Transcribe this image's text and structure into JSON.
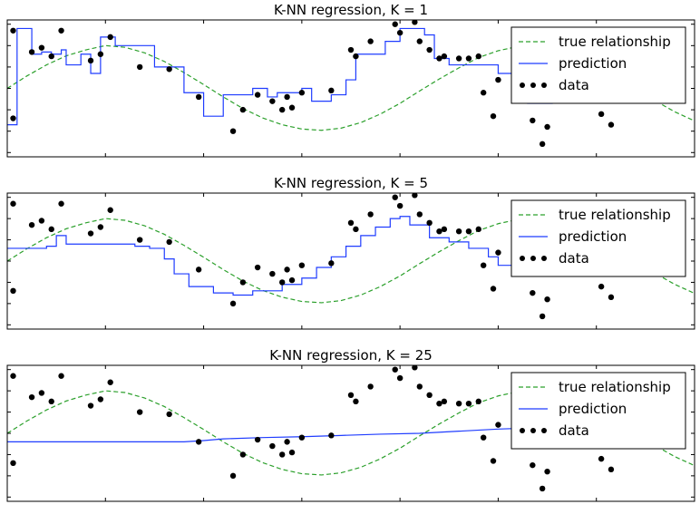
{
  "chart_data": [
    {
      "type": "line",
      "title": "K-NN regression, K = 1",
      "xlabel": "",
      "ylabel": "",
      "xlim": [
        0,
        7.0
      ],
      "ylim": [
        -1.6,
        1.6
      ],
      "grid": false,
      "legend": {
        "position": "top-right",
        "entries": [
          "true relationship",
          "prediction",
          "data"
        ]
      },
      "colors": {
        "true": "#2ca02c",
        "prediction": "#1f3cff",
        "data": "#000000"
      },
      "series": [
        {
          "name": "true relationship",
          "x": [
            0.0,
            0.2,
            0.4,
            0.6,
            0.8,
            1.0,
            1.2,
            1.4,
            1.6,
            1.8,
            2.0,
            2.2,
            2.4,
            2.6,
            2.8,
            3.0,
            3.2,
            3.4,
            3.6,
            3.8,
            4.0,
            4.2,
            4.4,
            4.6,
            4.8,
            5.0,
            5.2,
            5.4,
            5.6,
            5.8,
            6.0,
            6.2,
            6.4,
            6.6,
            6.8,
            7.0
          ],
          "y": [
            0.0,
            0.29,
            0.55,
            0.76,
            0.9,
            1.0,
            0.96,
            0.83,
            0.63,
            0.37,
            0.09,
            -0.2,
            -0.47,
            -0.69,
            -0.85,
            -0.95,
            -0.98,
            -0.93,
            -0.8,
            -0.6,
            -0.35,
            -0.06,
            0.22,
            0.48,
            0.72,
            0.88,
            0.98,
            0.99,
            0.92,
            0.76,
            0.54,
            0.28,
            -0.01,
            -0.29,
            -0.55,
            -0.76
          ]
        },
        {
          "name": "prediction",
          "x": [
            0.0,
            0.1,
            0.1,
            0.25,
            0.25,
            0.35,
            0.35,
            0.45,
            0.45,
            0.55,
            0.55,
            0.6,
            0.6,
            0.75,
            0.75,
            0.85,
            0.85,
            0.95,
            0.95,
            1.1,
            1.1,
            1.5,
            1.5,
            1.8,
            1.8,
            2.0,
            2.0,
            2.2,
            2.2,
            2.5,
            2.5,
            2.65,
            2.65,
            2.75,
            2.75,
            3.0,
            3.0,
            3.1,
            3.1,
            3.3,
            3.3,
            3.45,
            3.45,
            3.55,
            3.55,
            3.85,
            3.85,
            3.9,
            3.95,
            4.0,
            4.0,
            4.25,
            4.25,
            4.35,
            4.35,
            4.5,
            4.5,
            4.7,
            4.7,
            5.0,
            5.0,
            5.3,
            5.3,
            5.55,
            5.55,
            6.2,
            6.2
          ],
          "y": [
            -0.85,
            -0.85,
            1.4,
            1.4,
            0.8,
            0.8,
            0.85,
            0.85,
            0.8,
            0.8,
            0.9,
            0.9,
            0.55,
            0.55,
            0.8,
            0.8,
            0.35,
            0.35,
            1.2,
            1.2,
            1.0,
            1.0,
            0.5,
            0.5,
            -0.1,
            -0.1,
            -0.65,
            -0.65,
            -0.15,
            -0.15,
            0.0,
            0.0,
            -0.2,
            -0.2,
            -0.1,
            -0.1,
            0.0,
            0.0,
            -0.3,
            -0.3,
            -0.15,
            -0.15,
            0.2,
            0.2,
            0.8,
            0.8,
            1.1,
            1.1,
            1.1,
            1.1,
            1.4,
            1.4,
            1.25,
            1.25,
            0.7,
            0.7,
            0.55,
            0.55,
            0.55,
            0.55,
            0.35,
            0.35,
            -0.35,
            -0.35,
            0.2,
            0.2,
            -0.2
          ]
        },
        {
          "name": "data",
          "x": [
            0.06,
            0.06,
            0.25,
            0.35,
            0.45,
            0.55,
            0.85,
            0.95,
            1.05,
            1.35,
            1.65,
            1.95,
            2.3,
            2.4,
            2.55,
            2.7,
            2.8,
            2.85,
            2.9,
            3.0,
            3.3,
            3.5,
            3.55,
            3.7,
            3.95,
            4.0,
            4.15,
            4.2,
            4.3,
            4.4,
            4.45,
            4.6,
            4.7,
            4.8,
            4.85,
            4.95,
            5.0,
            5.35,
            5.45,
            5.5,
            5.6,
            5.7,
            5.75,
            6.05,
            6.15,
            6.25,
            6.4,
            6.5
          ],
          "y": [
            -0.7,
            1.35,
            0.85,
            0.95,
            0.75,
            1.35,
            0.65,
            0.8,
            1.2,
            0.5,
            0.45,
            -0.2,
            -1.0,
            -0.5,
            -0.15,
            -0.3,
            -0.5,
            -0.2,
            -0.45,
            -0.1,
            -0.05,
            0.9,
            0.75,
            1.1,
            1.5,
            1.3,
            1.55,
            1.1,
            0.9,
            0.7,
            0.75,
            0.7,
            0.7,
            0.75,
            -0.1,
            -0.65,
            0.2,
            -0.75,
            -1.3,
            -0.9,
            0.5,
            0.55,
            0.1,
            -0.6,
            -0.85,
            -0.2,
            -0.25,
            0.2
          ]
        }
      ]
    },
    {
      "type": "line",
      "title": "K-NN regression, K = 5",
      "xlabel": "",
      "ylabel": "",
      "xlim": [
        0,
        7.0
      ],
      "ylim": [
        -1.6,
        1.6
      ],
      "grid": false,
      "legend": {
        "position": "top-right",
        "entries": [
          "true relationship",
          "prediction",
          "data"
        ]
      },
      "colors": {
        "true": "#2ca02c",
        "prediction": "#1f3cff",
        "data": "#000000"
      },
      "series": [
        {
          "name": "true relationship",
          "x": [
            0.0,
            0.2,
            0.4,
            0.6,
            0.8,
            1.0,
            1.2,
            1.4,
            1.6,
            1.8,
            2.0,
            2.2,
            2.4,
            2.6,
            2.8,
            3.0,
            3.2,
            3.4,
            3.6,
            3.8,
            4.0,
            4.2,
            4.4,
            4.6,
            4.8,
            5.0,
            5.2,
            5.4,
            5.6,
            5.8,
            6.0,
            6.2,
            6.4,
            6.6,
            6.8,
            7.0
          ],
          "y": [
            0.0,
            0.29,
            0.55,
            0.76,
            0.9,
            1.0,
            0.96,
            0.83,
            0.63,
            0.37,
            0.09,
            -0.2,
            -0.47,
            -0.69,
            -0.85,
            -0.95,
            -0.98,
            -0.93,
            -0.8,
            -0.6,
            -0.35,
            -0.06,
            0.22,
            0.48,
            0.72,
            0.88,
            0.98,
            0.99,
            0.92,
            0.76,
            0.54,
            0.28,
            -0.01,
            -0.29,
            -0.55,
            -0.76
          ]
        },
        {
          "name": "prediction",
          "x": [
            0.0,
            0.4,
            0.4,
            0.5,
            0.5,
            0.6,
            0.6,
            1.3,
            1.3,
            1.45,
            1.45,
            1.6,
            1.6,
            1.7,
            1.7,
            1.85,
            1.85,
            2.1,
            2.1,
            2.3,
            2.3,
            2.5,
            2.5,
            2.8,
            2.8,
            3.0,
            3.0,
            3.15,
            3.15,
            3.3,
            3.3,
            3.45,
            3.45,
            3.6,
            3.6,
            3.75,
            3.75,
            3.9,
            3.9,
            4.0,
            4.0,
            4.1,
            4.1,
            4.3,
            4.3,
            4.5,
            4.5,
            4.7,
            4.7,
            4.9,
            4.9,
            5.0,
            5.0,
            5.3,
            5.3,
            5.6,
            5.6,
            6.0,
            6.0
          ],
          "y": [
            0.3,
            0.3,
            0.35,
            0.35,
            0.6,
            0.6,
            0.4,
            0.4,
            0.35,
            0.35,
            0.3,
            0.3,
            0.05,
            0.05,
            -0.3,
            -0.3,
            -0.6,
            -0.6,
            -0.75,
            -0.75,
            -0.8,
            -0.8,
            -0.7,
            -0.7,
            -0.55,
            -0.55,
            -0.4,
            -0.4,
            -0.15,
            -0.15,
            0.1,
            0.1,
            0.35,
            0.35,
            0.6,
            0.6,
            0.8,
            0.8,
            1.0,
            1.0,
            1.05,
            1.05,
            0.85,
            0.85,
            0.55,
            0.55,
            0.45,
            0.45,
            0.3,
            0.3,
            0.1,
            0.1,
            -0.1,
            -0.1,
            -0.2,
            -0.2,
            -0.15,
            -0.15,
            -0.2
          ]
        },
        {
          "name": "data",
          "x": [
            0.06,
            0.06,
            0.25,
            0.35,
            0.45,
            0.55,
            0.85,
            0.95,
            1.05,
            1.35,
            1.65,
            1.95,
            2.3,
            2.4,
            2.55,
            2.7,
            2.8,
            2.85,
            2.9,
            3.0,
            3.3,
            3.5,
            3.55,
            3.7,
            3.95,
            4.0,
            4.15,
            4.2,
            4.3,
            4.4,
            4.45,
            4.6,
            4.7,
            4.8,
            4.85,
            4.95,
            5.0,
            5.35,
            5.45,
            5.5,
            5.6,
            5.7,
            5.75,
            6.05,
            6.15,
            6.25,
            6.4,
            6.5
          ],
          "y": [
            -0.7,
            1.35,
            0.85,
            0.95,
            0.75,
            1.35,
            0.65,
            0.8,
            1.2,
            0.5,
            0.45,
            -0.2,
            -1.0,
            -0.5,
            -0.15,
            -0.3,
            -0.5,
            -0.2,
            -0.45,
            -0.1,
            -0.05,
            0.9,
            0.75,
            1.1,
            1.5,
            1.3,
            1.55,
            1.1,
            0.9,
            0.7,
            0.75,
            0.7,
            0.7,
            0.75,
            -0.1,
            -0.65,
            0.2,
            -0.75,
            -1.3,
            -0.9,
            0.5,
            0.55,
            0.1,
            -0.6,
            -0.85,
            -0.2,
            -0.25,
            0.2
          ]
        }
      ]
    },
    {
      "type": "line",
      "title": "K-NN regression, K = 25",
      "xlabel": "",
      "ylabel": "",
      "xlim": [
        0,
        7.0
      ],
      "ylim": [
        -1.6,
        1.6
      ],
      "grid": false,
      "legend": {
        "position": "top-right",
        "entries": [
          "true relationship",
          "prediction",
          "data"
        ]
      },
      "colors": {
        "true": "#2ca02c",
        "prediction": "#1f3cff",
        "data": "#000000"
      },
      "series": [
        {
          "name": "true relationship",
          "x": [
            0.0,
            0.2,
            0.4,
            0.6,
            0.8,
            1.0,
            1.2,
            1.4,
            1.6,
            1.8,
            2.0,
            2.2,
            2.4,
            2.6,
            2.8,
            3.0,
            3.2,
            3.4,
            3.6,
            3.8,
            4.0,
            4.2,
            4.4,
            4.6,
            4.8,
            5.0,
            5.2,
            5.4,
            5.6,
            5.8,
            6.0,
            6.2,
            6.4,
            6.6,
            6.8,
            7.0
          ],
          "y": [
            0.0,
            0.29,
            0.55,
            0.76,
            0.9,
            1.0,
            0.96,
            0.83,
            0.63,
            0.37,
            0.09,
            -0.2,
            -0.47,
            -0.69,
            -0.85,
            -0.95,
            -0.98,
            -0.93,
            -0.8,
            -0.6,
            -0.35,
            -0.06,
            0.22,
            0.48,
            0.72,
            0.88,
            0.98,
            0.99,
            0.92,
            0.76,
            0.54,
            0.28,
            -0.01,
            -0.29,
            -0.55,
            -0.76
          ]
        },
        {
          "name": "prediction",
          "x": [
            0.0,
            1.8,
            2.0,
            2.2,
            2.6,
            3.0,
            3.4,
            3.8,
            4.2,
            4.6,
            5.0,
            5.4,
            6.0
          ],
          "y": [
            -0.2,
            -0.2,
            -0.17,
            -0.13,
            -0.1,
            -0.08,
            -0.05,
            -0.02,
            0.0,
            0.05,
            0.1,
            0.13,
            0.15
          ]
        },
        {
          "name": "data",
          "x": [
            0.06,
            0.06,
            0.25,
            0.35,
            0.45,
            0.55,
            0.85,
            0.95,
            1.05,
            1.35,
            1.65,
            1.95,
            2.3,
            2.4,
            2.55,
            2.7,
            2.8,
            2.85,
            2.9,
            3.0,
            3.3,
            3.5,
            3.55,
            3.7,
            3.95,
            4.0,
            4.15,
            4.2,
            4.3,
            4.4,
            4.45,
            4.6,
            4.7,
            4.8,
            4.85,
            4.95,
            5.0,
            5.35,
            5.45,
            5.5,
            5.6,
            5.7,
            5.75,
            6.05,
            6.15,
            6.25,
            6.4,
            6.5
          ],
          "y": [
            -0.7,
            1.35,
            0.85,
            0.95,
            0.75,
            1.35,
            0.65,
            0.8,
            1.2,
            0.5,
            0.45,
            -0.2,
            -1.0,
            -0.5,
            -0.15,
            -0.3,
            -0.5,
            -0.2,
            -0.45,
            -0.1,
            -0.05,
            0.9,
            0.75,
            1.1,
            1.5,
            1.3,
            1.55,
            1.1,
            0.9,
            0.7,
            0.75,
            0.7,
            0.7,
            0.75,
            -0.1,
            -0.65,
            0.2,
            -0.75,
            -1.3,
            -0.9,
            0.5,
            0.55,
            0.1,
            -0.6,
            -0.85,
            -0.2,
            -0.25,
            0.2
          ]
        }
      ]
    }
  ]
}
